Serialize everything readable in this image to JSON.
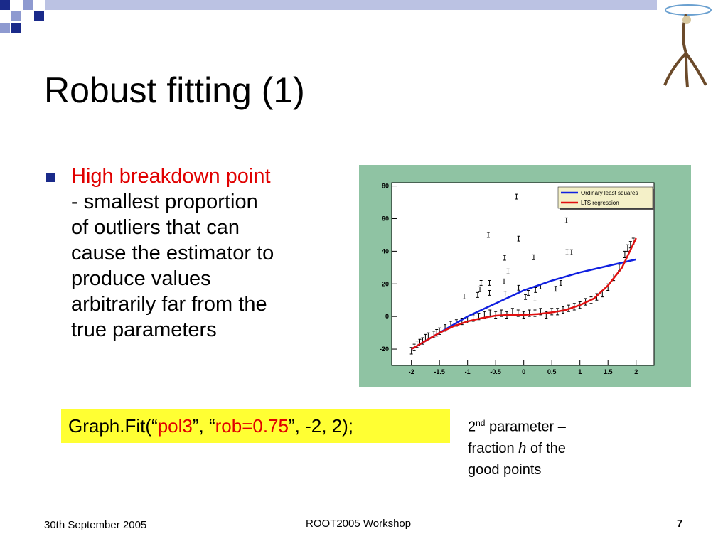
{
  "header": {
    "title": "Robust fitting (1)"
  },
  "bullet": {
    "lines": [
      "High breakdown point",
      "- smallest proportion",
      "of outliers that can",
      "cause the estimator to",
      "produce values",
      "arbitrarily far from the",
      "true parameters"
    ]
  },
  "code": {
    "parts": [
      "Graph.Fit(“",
      "pol3",
      "”, “",
      "rob=0.75",
      "”, -2, 2);"
    ]
  },
  "note": {
    "parts": [
      "2",
      "nd",
      " parameter –",
      "fraction ",
      "h",
      " of the",
      "good points"
    ]
  },
  "footer": {
    "date": "30th September 2005",
    "event": "ROOT2005 Workshop",
    "page": "7"
  },
  "chart_data": {
    "type": "scatter",
    "xlim": [
      -2.35,
      2.32
    ],
    "ylim": [
      -30,
      82
    ],
    "xticks": [
      -2,
      -1.5,
      -1,
      -0.5,
      0,
      0.5,
      1,
      1.5,
      2
    ],
    "yticks": [
      -20,
      0,
      20,
      40,
      60,
      80
    ],
    "legend": "top-right",
    "points": {
      "color": "#000000",
      "x": [
        -2,
        -1.95,
        -1.9,
        -1.85,
        -1.8,
        -1.75,
        -1.7,
        -1.6,
        -1.55,
        -1.5,
        -1.4,
        -1.3,
        -1.2,
        -1.1,
        -1.0,
        -0.9,
        -0.8,
        -0.7,
        -0.6,
        -0.5,
        -0.4,
        -0.3,
        -0.2,
        -0.1,
        0,
        0.1,
        0.2,
        0.3,
        0.4,
        0.5,
        0.6,
        0.7,
        0.8,
        0.9,
        1.0,
        1.1,
        1.2,
        1.3,
        1.4,
        1.5,
        1.6,
        1.7,
        1.8,
        1.85,
        1.9,
        1.95,
        -0.13,
        -0.63,
        -0.09,
        0.76,
        -0.34,
        0.18,
        0.77,
        0.85,
        -0.28,
        -0.76,
        -0.61,
        -0.35,
        -1.06,
        -0.82,
        -0.61,
        -0.33,
        -0.09,
        0.08,
        0.21,
        0.3,
        0.57,
        0.66,
        -0.78,
        0.03,
        0.2
      ],
      "values": [
        -21,
        -19,
        -17,
        -16,
        -15,
        -13,
        -12,
        -11,
        -10,
        -9,
        -7,
        -5,
        -4,
        -3,
        -2,
        -1,
        0,
        1,
        2,
        1,
        2,
        1,
        3,
        2,
        1,
        2,
        2,
        3,
        1,
        3,
        3,
        4,
        5,
        6,
        7,
        9,
        10,
        12,
        14,
        18,
        24,
        30,
        38,
        42,
        44,
        46,
        73.5,
        50,
        47.7,
        59,
        36,
        36.3,
        39.4,
        39.4,
        27.6,
        20.6,
        20.6,
        21.5,
        12.3,
        13.2,
        14.5,
        14,
        17.6,
        14.5,
        16.2,
        18.4,
        17,
        20.6,
        16.7,
        11.9,
        11
      ],
      "errors": [
        2,
        2,
        2,
        2,
        2,
        2,
        2,
        2,
        2,
        2,
        2,
        2,
        2,
        2,
        2,
        2,
        2,
        2,
        2,
        2,
        2,
        2,
        2,
        2,
        2,
        2,
        2,
        2,
        2,
        2,
        2,
        2,
        2,
        2,
        2,
        2,
        2,
        2,
        2,
        2,
        2,
        2,
        2,
        2,
        2,
        2,
        1.5,
        1.5,
        1.5,
        1.5,
        1.5,
        1.5,
        1.5,
        1.5,
        1.5,
        1.5,
        1.5,
        1.5,
        1.5,
        1.5,
        1.5,
        1.5,
        1.5,
        1.5,
        1.5,
        1.5,
        1.5,
        1.5,
        1.5,
        1.5,
        1.5
      ]
    },
    "series": [
      {
        "name": "Ordinary least squares",
        "color": "#1020e0",
        "x": [
          -2,
          -1.5,
          -1,
          -0.5,
          0,
          0.5,
          1,
          1.5,
          2
        ],
        "values": [
          -20,
          -10,
          0,
          8,
          16,
          22,
          27,
          31,
          35
        ]
      },
      {
        "name": "LTS regression",
        "color": "#e01010",
        "x": [
          -2,
          -1.75,
          -1.5,
          -1.25,
          -1,
          -0.75,
          -0.5,
          -0.25,
          0,
          0.25,
          0.5,
          0.75,
          1,
          1.25,
          1.5,
          1.75,
          2
        ],
        "values": [
          -20,
          -15,
          -10,
          -6,
          -3,
          -1,
          0.5,
          1,
          1,
          1.5,
          2.5,
          4,
          7,
          11,
          19,
          30,
          48
        ]
      }
    ]
  }
}
